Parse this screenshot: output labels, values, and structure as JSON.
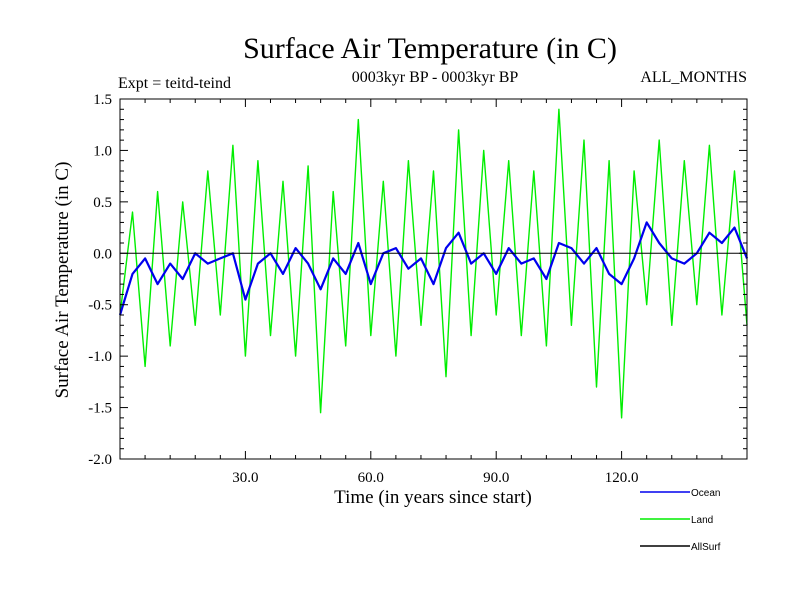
{
  "chart_data": {
    "type": "line",
    "title": "Surface Air Temperature (in C)",
    "subtitle_left": "Expt = teitd-teind",
    "subtitle_center": "0003kyr BP - 0003kyr BP",
    "subtitle_right": "ALL_MONTHS",
    "xlabel": "Time (in years since start)",
    "ylabel": "Surface Air Temperature (in C)",
    "xlim": [
      0,
      150
    ],
    "ylim": [
      -2.0,
      1.5
    ],
    "xticks": [
      30,
      60,
      90,
      120
    ],
    "xtick_labels": [
      "30.0",
      "60.0",
      "90.0",
      "120.0"
    ],
    "yticks": [
      -2.0,
      -1.5,
      -1.0,
      -0.5,
      0.0,
      0.5,
      1.0,
      1.5
    ],
    "ytick_labels": [
      "-2.0",
      "-1.5",
      "-1.0",
      "-0.5",
      "0.0",
      "0.5",
      "1.0",
      "1.5"
    ],
    "baseline": 0.0,
    "series": [
      {
        "name": "Land",
        "color": "#00ee00",
        "x": [
          0,
          3,
          6,
          9,
          12,
          15,
          18,
          21,
          24,
          27,
          30,
          33,
          36,
          39,
          42,
          45,
          48,
          51,
          54,
          57,
          60,
          63,
          66,
          69,
          72,
          75,
          78,
          81,
          84,
          87,
          90,
          93,
          96,
          99,
          102,
          105,
          108,
          111,
          114,
          117,
          120,
          123,
          126,
          129,
          132,
          135,
          138,
          141,
          144,
          147,
          150
        ],
        "values": [
          -0.6,
          0.4,
          -1.1,
          0.6,
          -0.9,
          0.5,
          -0.7,
          0.8,
          -0.6,
          1.05,
          -1.0,
          0.9,
          -0.8,
          0.7,
          -1.0,
          0.85,
          -1.55,
          0.6,
          -0.9,
          1.3,
          -0.8,
          0.7,
          -1.0,
          0.9,
          -0.7,
          0.8,
          -1.2,
          1.2,
          -0.8,
          1.0,
          -0.6,
          0.9,
          -0.8,
          0.8,
          -0.9,
          1.4,
          -0.7,
          1.1,
          -1.3,
          0.9,
          -1.6,
          0.8,
          -0.5,
          1.1,
          -0.7,
          0.9,
          -0.5,
          1.05,
          -0.6,
          0.8,
          -0.7
        ]
      },
      {
        "name": "Ocean",
        "color": "#0000ee",
        "x": [
          0,
          3,
          6,
          9,
          12,
          15,
          18,
          21,
          24,
          27,
          30,
          33,
          36,
          39,
          42,
          45,
          48,
          51,
          54,
          57,
          60,
          63,
          66,
          69,
          72,
          75,
          78,
          81,
          84,
          87,
          90,
          93,
          96,
          99,
          102,
          105,
          108,
          111,
          114,
          117,
          120,
          123,
          126,
          129,
          132,
          135,
          138,
          141,
          144,
          147,
          150
        ],
        "values": [
          -0.6,
          -0.2,
          -0.05,
          -0.3,
          -0.1,
          -0.25,
          0.0,
          -0.1,
          -0.05,
          0.0,
          -0.45,
          -0.1,
          0.0,
          -0.2,
          0.05,
          -0.1,
          -0.35,
          -0.05,
          -0.2,
          0.1,
          -0.3,
          0.0,
          0.05,
          -0.15,
          -0.05,
          -0.3,
          0.05,
          0.2,
          -0.1,
          0.0,
          -0.2,
          0.05,
          -0.1,
          -0.05,
          -0.25,
          0.1,
          0.05,
          -0.1,
          0.05,
          -0.2,
          -0.3,
          -0.05,
          0.3,
          0.1,
          -0.05,
          -0.1,
          0.0,
          0.2,
          0.1,
          0.25,
          -0.05
        ]
      },
      {
        "name": "AllSurf",
        "color": "#000000",
        "x": [],
        "values": []
      }
    ],
    "legend_position": "bottom-right"
  }
}
